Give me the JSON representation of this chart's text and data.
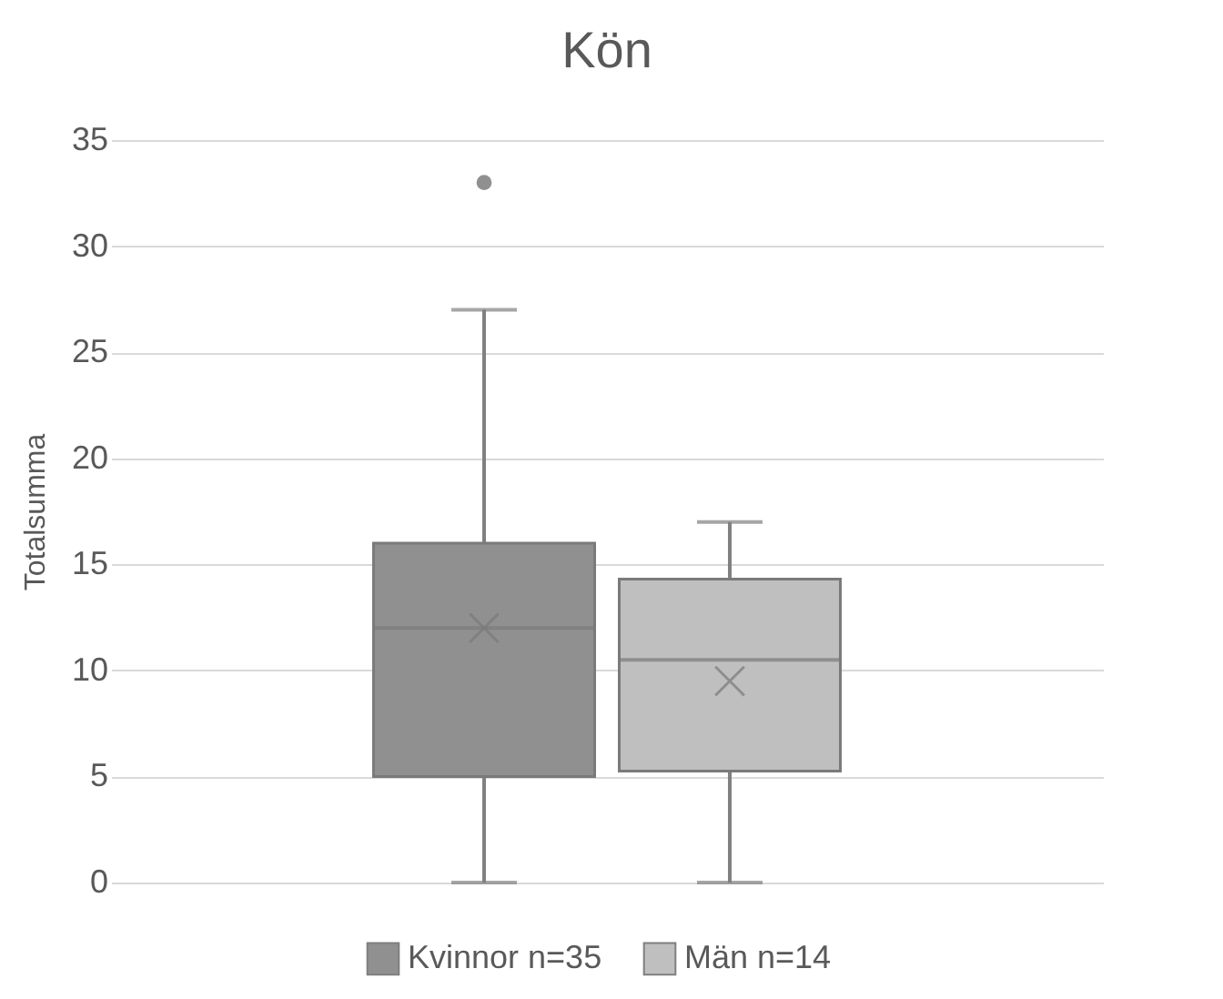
{
  "chart_data": {
    "type": "box",
    "title": "Kön",
    "ylabel": "Totalsumma",
    "categories": [
      null
    ],
    "series": [
      {
        "name": "Kvinnor n=35",
        "color": "#909090",
        "boxes": [
          {
            "low": 0,
            "q1": 5,
            "median": 12,
            "q3": 16,
            "high": 27,
            "mean": 12,
            "outliers": [
              33
            ]
          }
        ]
      },
      {
        "name": "Män n=14",
        "color": "#bfbfbf",
        "boxes": [
          {
            "low": 0,
            "q1": 5.25,
            "median": 10.5,
            "q3": 14.3,
            "high": 17,
            "mean": 9.5
          }
        ]
      }
    ],
    "ylim": [
      0,
      35
    ],
    "yticks": [
      0,
      5,
      10,
      15,
      20,
      25,
      30,
      35
    ],
    "grid": "y",
    "legend": "bottom",
    "tick_labels": "y"
  }
}
